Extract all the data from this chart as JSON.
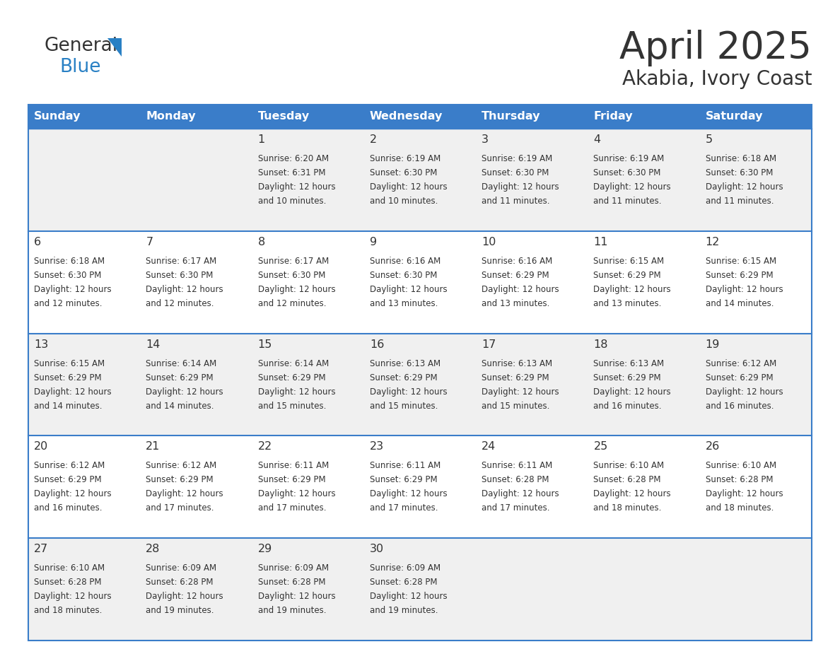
{
  "title": "April 2025",
  "subtitle": "Akabia, Ivory Coast",
  "header_bg": "#3A7DC9",
  "header_text_color": "#FFFFFF",
  "cell_bg_even": "#F0F0F0",
  "cell_bg_odd": "#FFFFFF",
  "border_color": "#3A7DC9",
  "text_color": "#333333",
  "days_of_week": [
    "Sunday",
    "Monday",
    "Tuesday",
    "Wednesday",
    "Thursday",
    "Friday",
    "Saturday"
  ],
  "calendar_data": [
    [
      {
        "day": null,
        "sunrise": null,
        "sunset": null,
        "daylight": null
      },
      {
        "day": null,
        "sunrise": null,
        "sunset": null,
        "daylight": null
      },
      {
        "day": 1,
        "sunrise": "6:20 AM",
        "sunset": "6:31 PM",
        "daylight": "12 hours\nand 10 minutes."
      },
      {
        "day": 2,
        "sunrise": "6:19 AM",
        "sunset": "6:30 PM",
        "daylight": "12 hours\nand 10 minutes."
      },
      {
        "day": 3,
        "sunrise": "6:19 AM",
        "sunset": "6:30 PM",
        "daylight": "12 hours\nand 11 minutes."
      },
      {
        "day": 4,
        "sunrise": "6:19 AM",
        "sunset": "6:30 PM",
        "daylight": "12 hours\nand 11 minutes."
      },
      {
        "day": 5,
        "sunrise": "6:18 AM",
        "sunset": "6:30 PM",
        "daylight": "12 hours\nand 11 minutes."
      }
    ],
    [
      {
        "day": 6,
        "sunrise": "6:18 AM",
        "sunset": "6:30 PM",
        "daylight": "12 hours\nand 12 minutes."
      },
      {
        "day": 7,
        "sunrise": "6:17 AM",
        "sunset": "6:30 PM",
        "daylight": "12 hours\nand 12 minutes."
      },
      {
        "day": 8,
        "sunrise": "6:17 AM",
        "sunset": "6:30 PM",
        "daylight": "12 hours\nand 12 minutes."
      },
      {
        "day": 9,
        "sunrise": "6:16 AM",
        "sunset": "6:30 PM",
        "daylight": "12 hours\nand 13 minutes."
      },
      {
        "day": 10,
        "sunrise": "6:16 AM",
        "sunset": "6:29 PM",
        "daylight": "12 hours\nand 13 minutes."
      },
      {
        "day": 11,
        "sunrise": "6:15 AM",
        "sunset": "6:29 PM",
        "daylight": "12 hours\nand 13 minutes."
      },
      {
        "day": 12,
        "sunrise": "6:15 AM",
        "sunset": "6:29 PM",
        "daylight": "12 hours\nand 14 minutes."
      }
    ],
    [
      {
        "day": 13,
        "sunrise": "6:15 AM",
        "sunset": "6:29 PM",
        "daylight": "12 hours\nand 14 minutes."
      },
      {
        "day": 14,
        "sunrise": "6:14 AM",
        "sunset": "6:29 PM",
        "daylight": "12 hours\nand 14 minutes."
      },
      {
        "day": 15,
        "sunrise": "6:14 AM",
        "sunset": "6:29 PM",
        "daylight": "12 hours\nand 15 minutes."
      },
      {
        "day": 16,
        "sunrise": "6:13 AM",
        "sunset": "6:29 PM",
        "daylight": "12 hours\nand 15 minutes."
      },
      {
        "day": 17,
        "sunrise": "6:13 AM",
        "sunset": "6:29 PM",
        "daylight": "12 hours\nand 15 minutes."
      },
      {
        "day": 18,
        "sunrise": "6:13 AM",
        "sunset": "6:29 PM",
        "daylight": "12 hours\nand 16 minutes."
      },
      {
        "day": 19,
        "sunrise": "6:12 AM",
        "sunset": "6:29 PM",
        "daylight": "12 hours\nand 16 minutes."
      }
    ],
    [
      {
        "day": 20,
        "sunrise": "6:12 AM",
        "sunset": "6:29 PM",
        "daylight": "12 hours\nand 16 minutes."
      },
      {
        "day": 21,
        "sunrise": "6:12 AM",
        "sunset": "6:29 PM",
        "daylight": "12 hours\nand 17 minutes."
      },
      {
        "day": 22,
        "sunrise": "6:11 AM",
        "sunset": "6:29 PM",
        "daylight": "12 hours\nand 17 minutes."
      },
      {
        "day": 23,
        "sunrise": "6:11 AM",
        "sunset": "6:29 PM",
        "daylight": "12 hours\nand 17 minutes."
      },
      {
        "day": 24,
        "sunrise": "6:11 AM",
        "sunset": "6:28 PM",
        "daylight": "12 hours\nand 17 minutes."
      },
      {
        "day": 25,
        "sunrise": "6:10 AM",
        "sunset": "6:28 PM",
        "daylight": "12 hours\nand 18 minutes."
      },
      {
        "day": 26,
        "sunrise": "6:10 AM",
        "sunset": "6:28 PM",
        "daylight": "12 hours\nand 18 minutes."
      }
    ],
    [
      {
        "day": 27,
        "sunrise": "6:10 AM",
        "sunset": "6:28 PM",
        "daylight": "12 hours\nand 18 minutes."
      },
      {
        "day": 28,
        "sunrise": "6:09 AM",
        "sunset": "6:28 PM",
        "daylight": "12 hours\nand 19 minutes."
      },
      {
        "day": 29,
        "sunrise": "6:09 AM",
        "sunset": "6:28 PM",
        "daylight": "12 hours\nand 19 minutes."
      },
      {
        "day": 30,
        "sunrise": "6:09 AM",
        "sunset": "6:28 PM",
        "daylight": "12 hours\nand 19 minutes."
      },
      {
        "day": null,
        "sunrise": null,
        "sunset": null,
        "daylight": null
      },
      {
        "day": null,
        "sunrise": null,
        "sunset": null,
        "daylight": null
      },
      {
        "day": null,
        "sunrise": null,
        "sunset": null,
        "daylight": null
      }
    ]
  ],
  "logo_color_general": "#333333",
  "logo_color_blue": "#2980C4",
  "logo_triangle_color": "#2980C4"
}
